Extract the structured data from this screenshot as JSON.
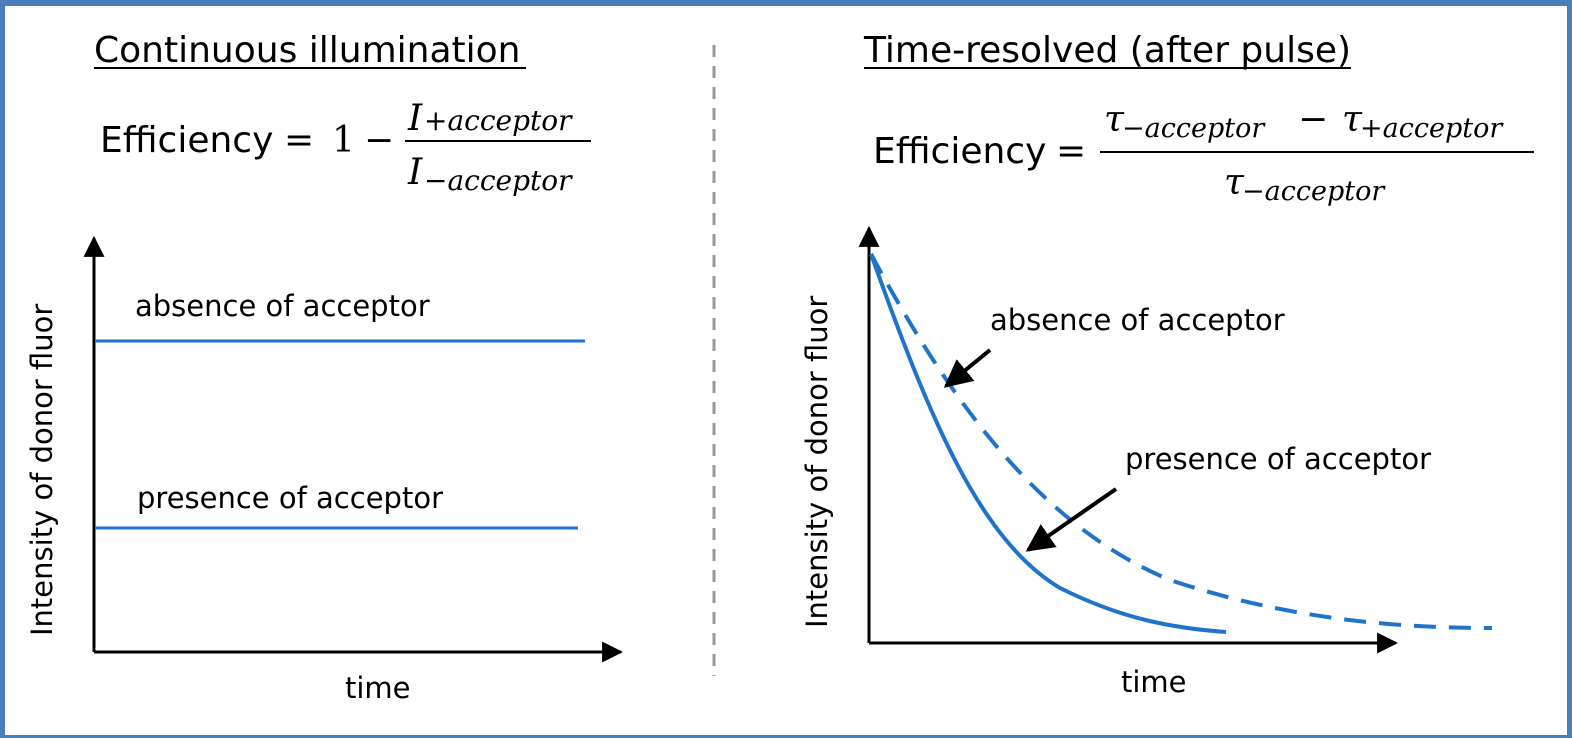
{
  "left_panel": {
    "title": "Continuous illumination",
    "equation": {
      "word": "Efficiency",
      "equals": "=",
      "one": "1",
      "minus": "−",
      "num_symbol": "I",
      "num_subscript": "+acceptor",
      "den_symbol": "I",
      "den_subscript": "−acceptor"
    },
    "y_axis_label": "Intensity of donor fluor",
    "x_axis_label": "time",
    "absence_label": "absence of acceptor",
    "presence_label": "presence of acceptor"
  },
  "right_panel": {
    "title": "Time-resolved (after pulse)",
    "equation": {
      "word": "Efficiency",
      "equals": "=",
      "num_symbol_a": "τ",
      "num_subscript_a": "−acceptor",
      "minus": "−",
      "num_symbol_b": "τ",
      "num_subscript_b": "+acceptor",
      "den_symbol": "τ",
      "den_subscript": "−acceptor"
    },
    "y_axis_label": "Intensity of donor fluor",
    "x_axis_label": "time",
    "absence_label": "absence of acceptor",
    "presence_label": "presence of acceptor"
  },
  "colors": {
    "curve": "#1f73c8",
    "frame": "#4a7ebb",
    "divider": "#999999",
    "axis": "#000000"
  }
}
